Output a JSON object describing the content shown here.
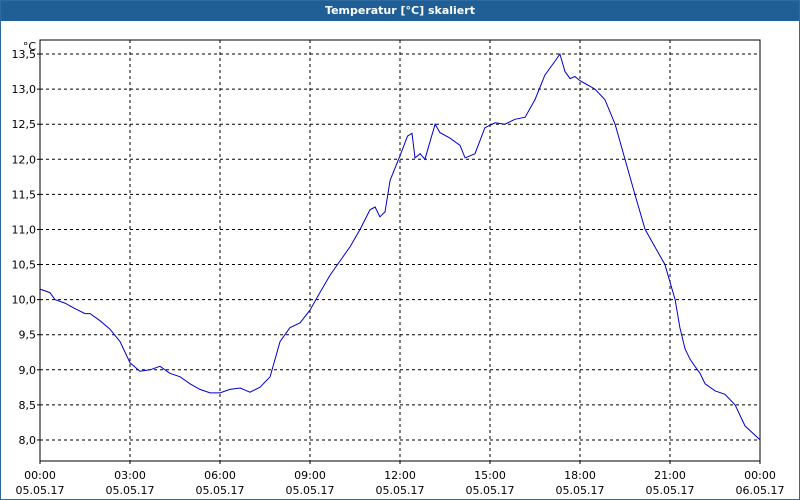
{
  "window": {
    "title": "Temperatur [°C] skaliert"
  },
  "colors": {
    "titlebar": "#1f5f95",
    "line": "#0000cc",
    "grid": "#000000"
  },
  "chart_data": {
    "type": "line",
    "title": "Temperatur [°C] skaliert",
    "ylabel": "°C",
    "xlabel": "",
    "ylim": [
      7.7,
      13.7
    ],
    "xlim": [
      0,
      24
    ],
    "grid": true,
    "grid_style": "dashed",
    "y_ticks": [
      "8,0",
      "8,5",
      "9,0",
      "9,5",
      "10,0",
      "10,5",
      "11,0",
      "11,5",
      "12,0",
      "12,5",
      "13,0",
      "13,5"
    ],
    "x_ticks": [
      {
        "time": "00:00",
        "date": "05.05.17"
      },
      {
        "time": "03:00",
        "date": "05.05.17"
      },
      {
        "time": "06:00",
        "date": "05.05.17"
      },
      {
        "time": "09:00",
        "date": "05.05.17"
      },
      {
        "time": "12:00",
        "date": "05.05.17"
      },
      {
        "time": "15:00",
        "date": "05.05.17"
      },
      {
        "time": "18:00",
        "date": "05.05.17"
      },
      {
        "time": "21:00",
        "date": "05.05.17"
      },
      {
        "time": "00:00",
        "date": "06.05.17"
      }
    ],
    "series": [
      {
        "x": [
          0,
          0.33,
          0.5,
          0.83,
          1.17,
          1.5,
          1.67,
          2,
          2.33,
          2.67,
          3,
          3.33,
          3.67,
          4,
          4.33,
          4.67,
          5,
          5.33,
          5.67,
          6,
          6.33,
          6.67,
          7,
          7.33,
          7.67,
          8,
          8.33,
          8.67,
          9,
          9.33,
          9.67,
          10,
          10.33,
          10.67,
          11,
          11.17,
          11.33,
          11.5,
          11.67,
          12,
          12.25,
          12.4,
          12.5,
          12.67,
          12.83,
          13.17,
          13.33,
          13.67,
          14,
          14.17,
          14.5,
          14.83,
          15.17,
          15.5,
          15.83,
          16.17,
          16.5,
          16.83,
          17.17,
          17.33,
          17.5,
          17.67,
          17.83,
          18,
          18.17,
          18.5,
          18.83,
          19.17,
          19.5,
          19.83,
          20.17,
          20.5,
          20.83,
          21.17,
          21.33,
          21.5,
          21.67,
          21.83,
          22,
          22.17,
          22.5,
          22.83,
          23.17,
          23.5,
          24
        ],
        "y": [
          10.15,
          10.1,
          10.0,
          9.95,
          9.87,
          9.8,
          9.8,
          9.7,
          9.58,
          9.4,
          9.1,
          8.98,
          9.0,
          9.05,
          8.95,
          8.9,
          8.8,
          8.72,
          8.67,
          8.67,
          8.72,
          8.74,
          8.68,
          8.75,
          8.9,
          9.4,
          9.6,
          9.67,
          9.85,
          10.1,
          10.35,
          10.55,
          10.75,
          11.0,
          11.28,
          11.32,
          11.18,
          11.25,
          11.7,
          12.05,
          12.33,
          12.37,
          12.02,
          12.08,
          12.0,
          12.5,
          12.38,
          12.3,
          12.2,
          12.02,
          12.08,
          12.45,
          12.52,
          12.5,
          12.57,
          12.6,
          12.85,
          13.2,
          13.4,
          13.5,
          13.25,
          13.15,
          13.18,
          13.12,
          13.08,
          13.0,
          12.85,
          12.5,
          12.0,
          11.5,
          11.0,
          10.75,
          10.5,
          10.0,
          9.6,
          9.3,
          9.15,
          9.05,
          8.95,
          8.8,
          8.7,
          8.65,
          8.5,
          8.2,
          8.0
        ]
      }
    ]
  }
}
